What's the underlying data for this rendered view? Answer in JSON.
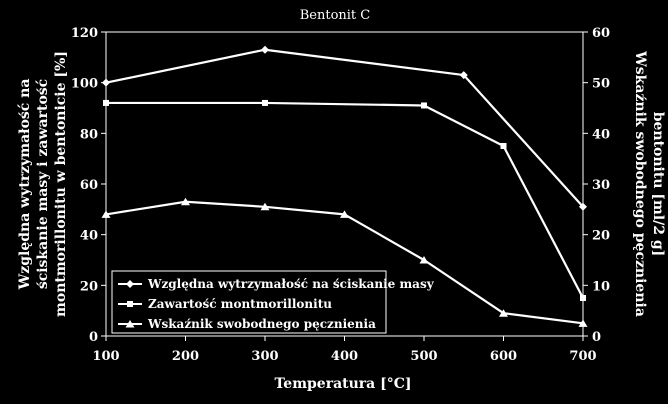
{
  "chart_data": {
    "type": "line",
    "title": "Bentonit C",
    "xlabel": "Temperatura [°C]",
    "ylabel_left_lines": [
      "Względna wytrzymałość na",
      "ściskanie masy i zawartość",
      "montmorillonitu w bentonicie [%]"
    ],
    "ylabel_right_lines": [
      "Wskaźnik swobodnego pęcznienia",
      "bentonitu [ml/2 g]"
    ],
    "xlim": [
      100,
      700
    ],
    "x_ticks": [
      "100",
      "200",
      "300",
      "400",
      "500",
      "600",
      "700"
    ],
    "ylim_left": [
      0,
      120
    ],
    "y_ticks_left": [
      "0",
      "20",
      "40",
      "60",
      "80",
      "100",
      "120"
    ],
    "ylim_right": [
      0,
      60
    ],
    "y_ticks_right": [
      "0",
      "10",
      "20",
      "30",
      "40",
      "50",
      "60"
    ],
    "grid": false,
    "legend_position": "bottom-left inside",
    "series": [
      {
        "name": "Względna wytrzymałość na ściskanie masy",
        "axis": "left",
        "marker": "diamond",
        "x": [
          100,
          300,
          550,
          700
        ],
        "y": [
          100,
          113,
          103,
          51
        ]
      },
      {
        "name": "Zawartość montmorillonitu",
        "axis": "left",
        "marker": "square",
        "x": [
          100,
          300,
          500,
          600,
          700
        ],
        "y": [
          92,
          92,
          91,
          75,
          15
        ]
      },
      {
        "name": "Wskaźnik swobodnego pęcznienia",
        "axis": "right",
        "marker": "triangle",
        "x": [
          100,
          200,
          300,
          400,
          500,
          600,
          700
        ],
        "y": [
          24,
          26.5,
          25.5,
          24,
          15,
          4.5,
          2.5
        ]
      }
    ],
    "colors": {
      "background": "#000000",
      "line": "#ffffff",
      "plot_border": "#ffffff"
    }
  }
}
